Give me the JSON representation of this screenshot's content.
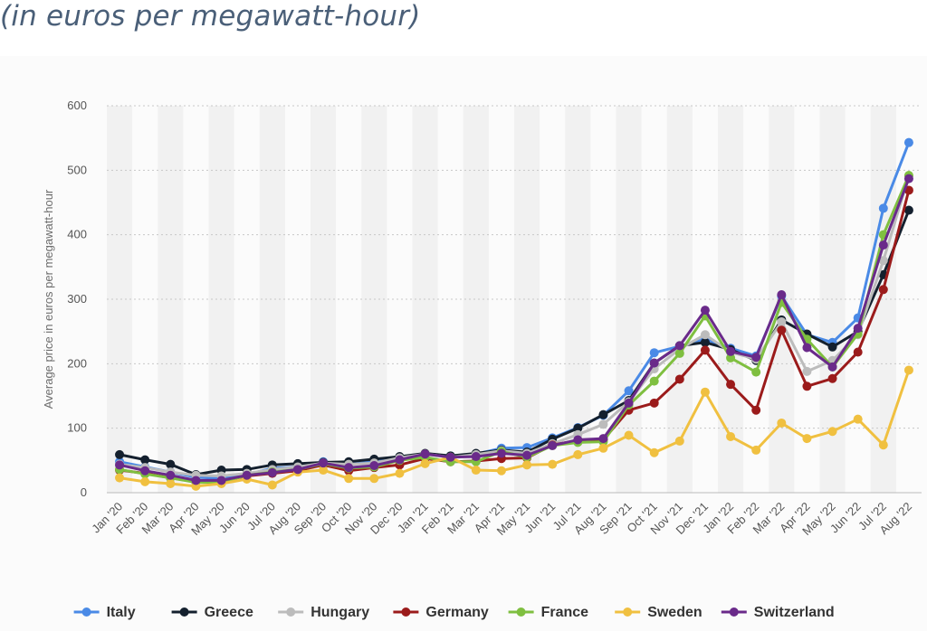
{
  "header": {
    "subtitle": "(in euros per megawatt-hour)"
  },
  "chart_data": {
    "type": "line",
    "title": "",
    "xlabel": "",
    "ylabel": "Average price in euros per megawatt-hour",
    "ylim": [
      0,
      600
    ],
    "yticks": [
      0,
      100,
      200,
      300,
      400,
      500,
      600
    ],
    "grid": "horizontal dotted lines, alternating vertical column shading",
    "legend_placement": "bottom",
    "categories": [
      "Jan '20",
      "Feb '20",
      "Mar '20",
      "Apr '20",
      "May '20",
      "Jun '20",
      "Jul '20",
      "Aug '20",
      "Sep '20",
      "Oct '20",
      "Nov '20",
      "Dec '20",
      "Jan '21",
      "Feb '21",
      "Mar '21",
      "Apr '21",
      "May '21",
      "Jun '21",
      "Jul '21",
      "Aug '21",
      "Sep '21",
      "Oct '21",
      "Nov '21",
      "Dec '21",
      "Jan '22",
      "Feb '22",
      "Mar '22",
      "Apr '22",
      "May '22",
      "Jun '22",
      "Jul '22",
      "Aug '22"
    ],
    "series": [
      {
        "name": "Italy",
        "color": "#4a8ae6",
        "values": [
          48,
          40,
          32,
          24,
          22,
          28,
          38,
          40,
          48,
          44,
          48,
          55,
          60,
          57,
          60,
          69,
          70,
          85,
          101,
          120,
          158,
          217,
          227,
          238,
          224,
          212,
          305,
          245,
          233,
          271,
          441,
          543
        ]
      },
      {
        "name": "Greece",
        "color": "#14202e",
        "values": [
          59,
          51,
          44,
          28,
          35,
          36,
          43,
          45,
          47,
          48,
          52,
          56,
          61,
          57,
          61,
          66,
          63,
          83,
          100,
          121,
          143,
          201,
          228,
          233,
          222,
          205,
          268,
          246,
          226,
          250,
          338,
          438
        ]
      },
      {
        "name": "Hungary",
        "color": "#bcbcbc",
        "values": [
          44,
          39,
          32,
          27,
          26,
          30,
          36,
          40,
          46,
          44,
          46,
          54,
          60,
          55,
          59,
          65,
          61,
          76,
          90,
          106,
          141,
          192,
          223,
          245,
          218,
          207,
          265,
          188,
          205,
          245,
          360,
          491
        ]
      },
      {
        "name": "Germany",
        "color": "#9b1b1b",
        "values": [
          35,
          30,
          23,
          17,
          18,
          26,
          30,
          34,
          43,
          34,
          39,
          43,
          53,
          48,
          49,
          53,
          54,
          74,
          81,
          82,
          128,
          139,
          176,
          221,
          168,
          128,
          252,
          165,
          177,
          218,
          315,
          469
        ]
      },
      {
        "name": "France",
        "color": "#7fbf40",
        "values": [
          36,
          29,
          23,
          16,
          16,
          27,
          32,
          36,
          45,
          38,
          40,
          50,
          55,
          48,
          48,
          64,
          55,
          73,
          78,
          79,
          136,
          173,
          216,
          274,
          209,
          187,
          295,
          238,
          195,
          246,
          400,
          492
        ]
      },
      {
        "name": "Sweden",
        "color": "#f0c040",
        "values": [
          23,
          17,
          14,
          10,
          14,
          21,
          12,
          32,
          35,
          22,
          22,
          30,
          45,
          55,
          35,
          34,
          43,
          44,
          59,
          69,
          89,
          62,
          80,
          156,
          87,
          66,
          108,
          84,
          95,
          114,
          74,
          190
        ]
      },
      {
        "name": "Switzerland",
        "color": "#6a2a8a",
        "values": [
          43,
          34,
          27,
          19,
          19,
          27,
          31,
          36,
          46,
          39,
          42,
          51,
          60,
          55,
          56,
          61,
          58,
          73,
          82,
          84,
          139,
          201,
          228,
          283,
          219,
          210,
          307,
          225,
          195,
          255,
          384,
          487
        ]
      }
    ]
  }
}
